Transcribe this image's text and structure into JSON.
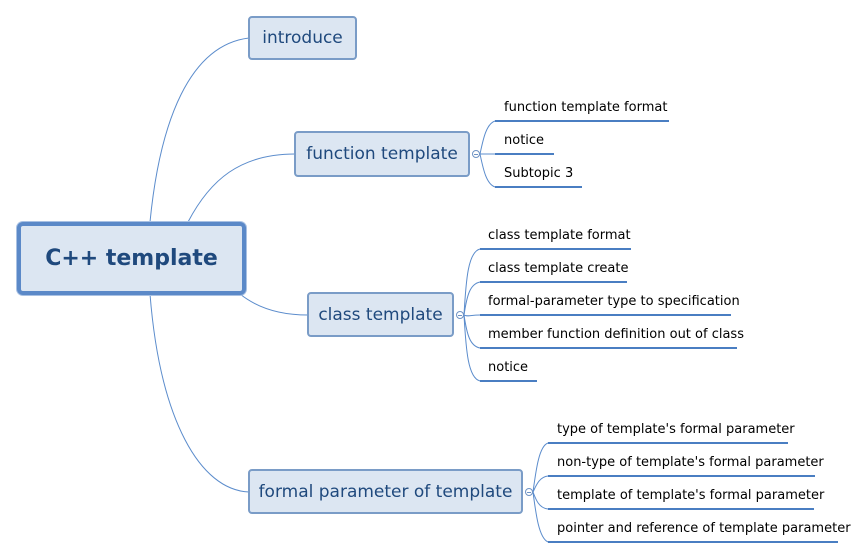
{
  "root": {
    "label": "C++ template"
  },
  "topics": [
    {
      "label": "introduce",
      "subtopics": []
    },
    {
      "label": "function template",
      "subtopics": [
        "function template format",
        "notice",
        "Subtopic 3"
      ]
    },
    {
      "label": "class template",
      "subtopics": [
        "class template format",
        "class template create",
        "formal-parameter type to specification",
        "member function definition out of class",
        "notice"
      ]
    },
    {
      "label": "formal parameter of template",
      "subtopics": [
        "type of template's formal parameter",
        "non-type of template's formal parameter",
        "template of template's formal parameter",
        "pointer and reference of template parameter"
      ]
    }
  ],
  "colors": {
    "line": "#4a7ec2",
    "node_fill": "#dce6f2",
    "node_border": "#7a9cc7",
    "text": "#1f497d"
  }
}
